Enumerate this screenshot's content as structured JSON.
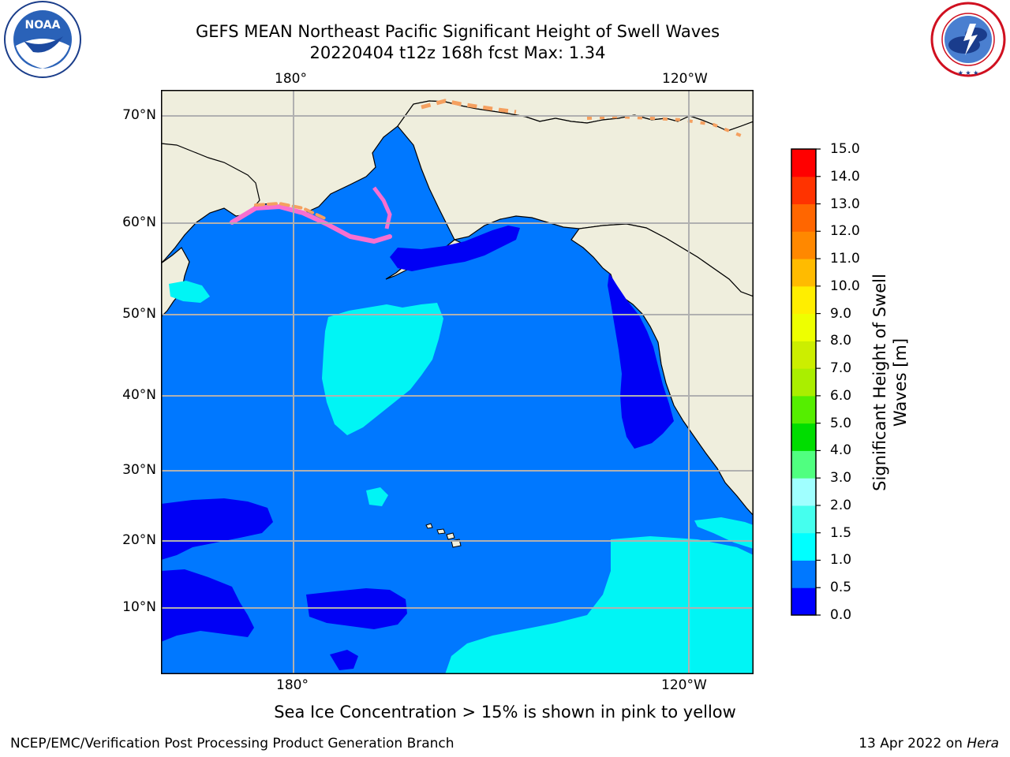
{
  "title": {
    "line1": "GEFS MEAN Northeast Pacific Significant Height of Swell Waves",
    "line2": "20220404 t12z 168h fcst   Max: 1.34"
  },
  "map": {
    "lon_labels_top": [
      "180°",
      "120°W"
    ],
    "lon_labels_bottom": [
      "180°",
      "120°W"
    ],
    "lat_labels": [
      "70°N",
      "60°N",
      "50°N",
      "40°N",
      "30°N",
      "20°N",
      "10°N"
    ],
    "colors": {
      "land": "#efeedd",
      "ocean_0_0.5": "#0000f5",
      "ocean_0.5_1.0": "#0078ff",
      "ocean_1.0_1.5": "#00f5f5",
      "ice_pink": "#f86fd0",
      "ice_orange": "#f5a060",
      "grid": "#b0b0b0"
    }
  },
  "colorbar": {
    "label": "Significant Height of Swell Waves [m]",
    "ticks": [
      "0.0",
      "0.5",
      "1.0",
      "1.5",
      "2.0",
      "3.0",
      "4.0",
      "5.0",
      "6.0",
      "7.0",
      "8.0",
      "9.0",
      "10.0",
      "11.0",
      "12.0",
      "13.0",
      "14.0",
      "15.0"
    ],
    "colors": [
      "#0000ff",
      "#0078ff",
      "#00ffff",
      "#45ffee",
      "#a0ffff",
      "#50ff80",
      "#00dd00",
      "#55ee00",
      "#aaee00",
      "#ccee00",
      "#eeff00",
      "#ffee00",
      "#ffbb00",
      "#ff8800",
      "#ff6600",
      "#ff3300",
      "#ff0000"
    ]
  },
  "subtitle": "Sea Ice Concentration > 15% is shown in pink to yellow",
  "footer": {
    "left": "NCEP/EMC/Verification Post Processing Product Generation Branch",
    "right_date": "13 Apr 2022 on ",
    "right_host": "Hera"
  },
  "logos": {
    "noaa": "NOAA",
    "nws_ring": "NATIONAL WEATHER SERVICE"
  }
}
